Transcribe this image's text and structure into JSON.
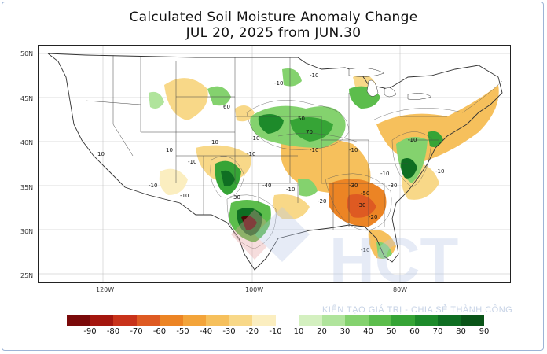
{
  "title": {
    "line1": "Calculated Soil Moisture Anomaly Change",
    "line2": "JUL 20, 2025 from JUN.30"
  },
  "latitude_labels": [
    "50N",
    "45N",
    "40N",
    "35N",
    "30N",
    "25N"
  ],
  "longitude_labels": [
    "120W",
    "100W",
    "80W"
  ],
  "contour_labels": [
    "-10",
    "-10",
    "-10",
    "-10",
    "-10",
    "-10",
    "-10",
    "-10",
    "-10",
    "-10",
    "-10",
    "10",
    "10",
    "10",
    "-30",
    "-30",
    "-30",
    "50",
    "70",
    "30",
    "60",
    "-20",
    "-50",
    "-40",
    "-20",
    "-10",
    "-10",
    "-10"
  ],
  "watermark": {
    "logo_text": "HCT",
    "slogan": "KIẾN TẠO GIÁ TRỊ - CHIA SẺ THÀNH CÔNG"
  },
  "legend": {
    "labels": [
      "-90",
      "-80",
      "-70",
      "-60",
      "-50",
      "-40",
      "-30",
      "-20",
      "-10",
      "10",
      "20",
      "30",
      "40",
      "50",
      "60",
      "70",
      "80",
      "90"
    ],
    "colors": [
      "#7a0a0a",
      "#a4160e",
      "#c8321a",
      "#de5a22",
      "#ec8424",
      "#f3a43a",
      "#f6c05c",
      "#f8d888",
      "#fbeec0",
      "#ffffff",
      "#d4f0c0",
      "#b0e49c",
      "#84d26e",
      "#5cbd4c",
      "#36a436",
      "#1d8a2a",
      "#0f6e22",
      "#0a5418"
    ]
  },
  "chart_data": {
    "type": "heatmap",
    "title": "Calculated Soil Moisture Anomaly Change",
    "subtitle": "JUL 20, 2025 from JUN.30",
    "units": "",
    "color_scale": [
      -90,
      -80,
      -70,
      -60,
      -50,
      -40,
      -30,
      -20,
      -10,
      10,
      20,
      30,
      40,
      50,
      60,
      70,
      80,
      90
    ],
    "lat_range": [
      25,
      50
    ],
    "lon_range": [
      -125,
      -65
    ]
  }
}
